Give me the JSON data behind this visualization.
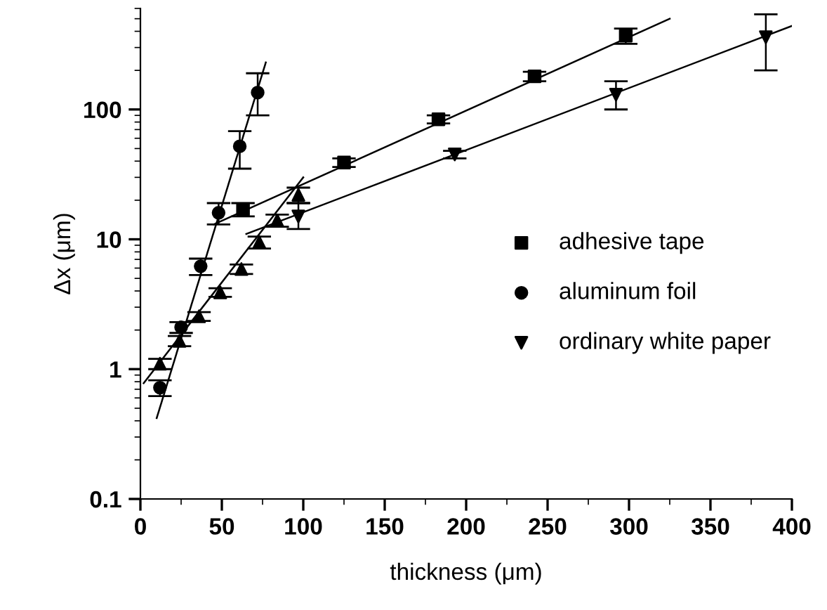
{
  "chart_data": {
    "type": "scatter",
    "xlabel": "thickness (μm)",
    "ylabel": "Δx (μm)",
    "xlim": [
      0,
      400
    ],
    "xticks": [
      0,
      50,
      100,
      150,
      200,
      250,
      300,
      350,
      400
    ],
    "ylim": [
      0.1,
      600
    ],
    "yticks": [
      0.1,
      1,
      10,
      100
    ],
    "log": "y",
    "grid": false,
    "legend": "right",
    "series": [
      {
        "name": "adhesive tape",
        "color": "#000000",
        "marker": "square",
        "x": [
          63,
          125,
          183,
          242,
          298
        ],
        "values": [
          17,
          39,
          84,
          180,
          370
        ],
        "errors": [
          2,
          3,
          6,
          15,
          50
        ]
      },
      {
        "name": "aluminum foil",
        "color": "#000000",
        "marker": "circle",
        "x": [
          12,
          25,
          37,
          48,
          61,
          72
        ],
        "values": [
          0.72,
          2.1,
          6.2,
          16,
          52,
          135
        ],
        "errors": [
          0.1,
          0.2,
          0.9,
          3,
          [
            35,
            68
          ],
          [
            90,
            190
          ]
        ]
      },
      {
        "color": "#000000",
        "marker": "triangle",
        "x": [
          12,
          24,
          36,
          49,
          62,
          73,
          84,
          97
        ],
        "values": [
          1.1,
          1.65,
          2.55,
          3.9,
          5.9,
          9.5,
          14,
          22
        ],
        "errors": [
          0.1,
          0.15,
          0.2,
          0.3,
          0.5,
          1,
          1.5,
          3
        ]
      },
      {
        "name": "ordinary white paper",
        "color": "#000000",
        "marker": "triangle_down",
        "x": [
          97,
          193,
          292,
          384
        ],
        "values": [
          15,
          45,
          130,
          360
        ],
        "errors": [
          [
            12,
            19
          ],
          3,
          [
            100,
            165
          ],
          [
            200,
            540
          ]
        ]
      },
      {
        "type": "line",
        "color": "#000000",
        "marker": "none",
        "x": [
          10,
          77
        ],
        "values": [
          0.42,
          230
        ]
      },
      {
        "type": "line",
        "color": "#000000",
        "marker": "none",
        "x": [
          2,
          100
        ],
        "values": [
          0.78,
          30
        ]
      },
      {
        "type": "line",
        "color": "#000000",
        "marker": "none",
        "x": [
          45,
          325
        ],
        "values": [
          13,
          500
        ]
      },
      {
        "type": "line",
        "color": "#000000",
        "marker": "none",
        "x": [
          65,
          400
        ],
        "values": [
          11,
          440
        ]
      }
    ]
  }
}
